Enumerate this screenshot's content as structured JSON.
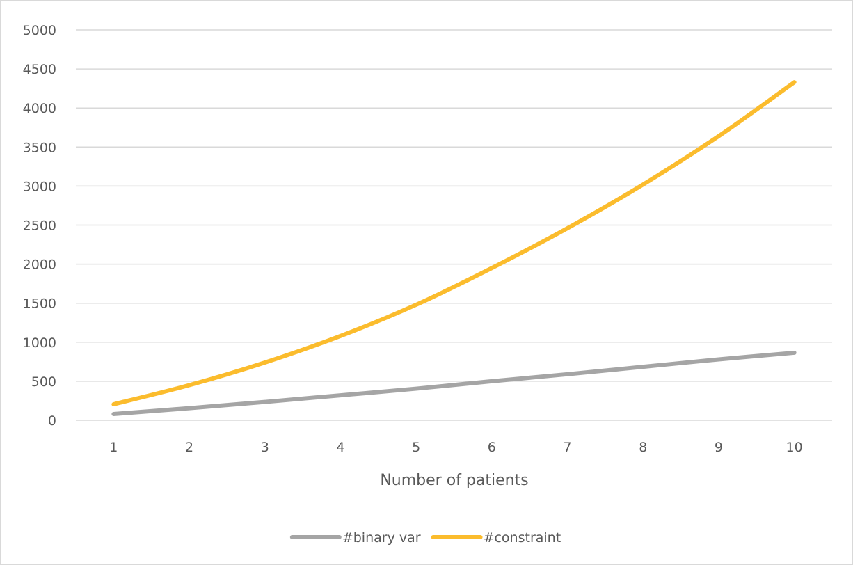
{
  "chart_data": {
    "type": "line",
    "title": "",
    "xlabel": "Number of patients",
    "ylabel": "",
    "x": [
      1,
      2,
      3,
      4,
      5,
      6,
      7,
      8,
      9,
      10
    ],
    "ylim": [
      0,
      5000
    ],
    "yticks": [
      0,
      500,
      1000,
      1500,
      2000,
      2500,
      3000,
      3500,
      4000,
      4500,
      5000
    ],
    "grid": true,
    "legend_position": "bottom",
    "series": [
      {
        "name": "#binary var",
        "color": "#a5a5a5",
        "values": [
          80,
          155,
          235,
          320,
          405,
          500,
          590,
          685,
          780,
          865
        ]
      },
      {
        "name": "#constraint",
        "color": "#fbbc2d",
        "values": [
          205,
          450,
          740,
          1080,
          1480,
          1950,
          2460,
          3020,
          3640,
          4330
        ]
      }
    ]
  }
}
